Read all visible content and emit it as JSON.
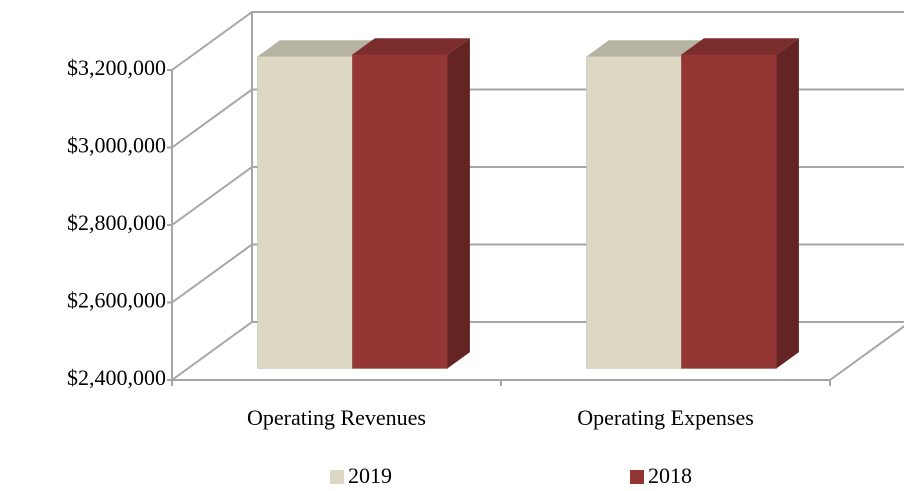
{
  "chart_data": {
    "type": "bar3d",
    "categories": [
      "Operating Revenues",
      "Operating Expenses"
    ],
    "series": [
      {
        "name": "2019",
        "color": "#ddd8c4",
        "values": [
          3205000,
          3205000
        ]
      },
      {
        "name": "2018",
        "color": "#943634",
        "values": [
          3210000,
          3210000
        ]
      }
    ],
    "ylim": [
      2400000,
      3200000
    ],
    "yticks": [
      {
        "value": 2400000,
        "label": "$2,400,000"
      },
      {
        "value": 2600000,
        "label": "$2,600,000"
      },
      {
        "value": 2800000,
        "label": "$2,800,000"
      },
      {
        "value": 3000000,
        "label": "$3,000,000"
      },
      {
        "value": 3200000,
        "label": "$3,200,000"
      }
    ],
    "grid": true,
    "legend": "bottom"
  }
}
